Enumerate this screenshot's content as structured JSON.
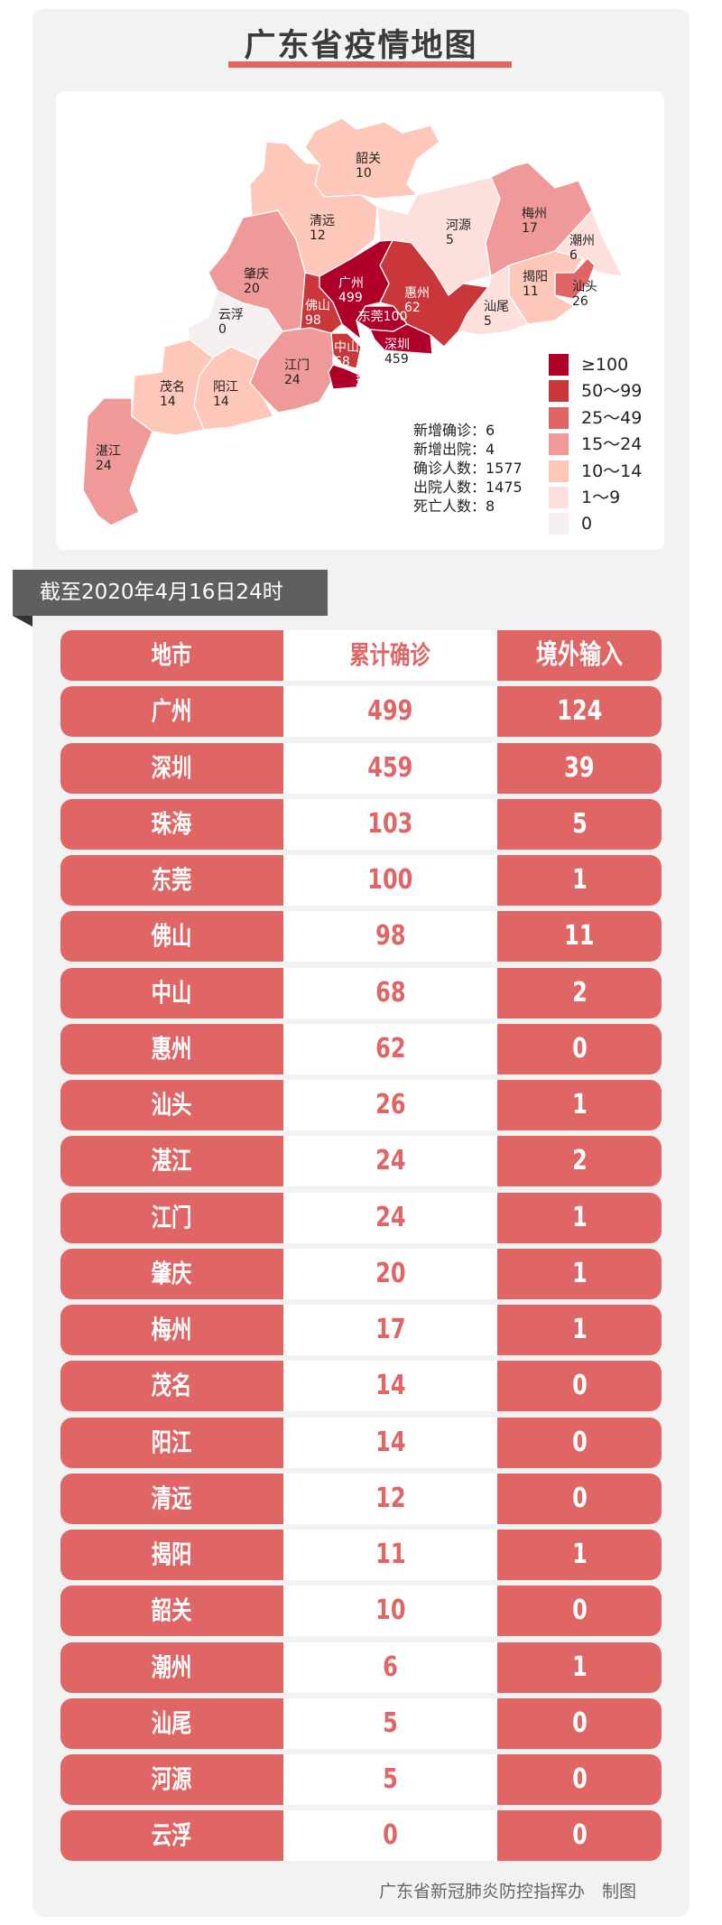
{
  "title": "广东省疫情地图",
  "map": {
    "regions": [
      {
        "id": "shaoguan",
        "name": "韶关",
        "count": "10"
      },
      {
        "id": "qingyuan",
        "name": "清远",
        "count": "12"
      },
      {
        "id": "heyuan",
        "name": "河源",
        "count": "5"
      },
      {
        "id": "meizhou",
        "name": "梅州",
        "count": "17"
      },
      {
        "id": "chaozhou",
        "name": "潮州",
        "count": "6"
      },
      {
        "id": "jieyang",
        "name": "揭阳",
        "count": "11"
      },
      {
        "id": "shantou",
        "name": "汕头",
        "count": "26"
      },
      {
        "id": "shanwei",
        "name": "汕尾",
        "count": "5"
      },
      {
        "id": "huizhou",
        "name": "惠州",
        "count": "62"
      },
      {
        "id": "guangzhou",
        "name": "广州",
        "count": "499"
      },
      {
        "id": "dongguan",
        "name": "东莞",
        "count": "100"
      },
      {
        "id": "shenzhen",
        "name": "深圳",
        "count": "459"
      },
      {
        "id": "foshan",
        "name": "佛山",
        "count": "98"
      },
      {
        "id": "zhaoqing",
        "name": "肇庆",
        "count": "20"
      },
      {
        "id": "yunfu",
        "name": "云浮",
        "count": "0"
      },
      {
        "id": "zhongshan",
        "name": "中山",
        "count": "68"
      },
      {
        "id": "jiangmen",
        "name": "江门",
        "count": "24"
      },
      {
        "id": "zhuhai",
        "name": "珠海",
        "count": "103"
      },
      {
        "id": "maoming",
        "name": "茂名",
        "count": "14"
      },
      {
        "id": "yangjiang",
        "name": "阳江",
        "count": "14"
      },
      {
        "id": "zhanjiang",
        "name": "湛江",
        "count": "24"
      }
    ],
    "stats": [
      "新增确诊：6",
      "新增出院：4",
      "确诊人数：1577",
      "出院人数：1475",
      "死亡人数：8"
    ],
    "legend": [
      {
        "label": "≥100",
        "color": "#b0002a"
      },
      {
        "label": "50～99",
        "color": "#c9373a"
      },
      {
        "label": "25～49",
        "color": "#e06666"
      },
      {
        "label": "15～24",
        "color": "#ef9a98"
      },
      {
        "label": "10～14",
        "color": "#fdc7b9"
      },
      {
        "label": "1～9",
        "color": "#fde0dc"
      },
      {
        "label": "0",
        "color": "#f5efef"
      }
    ]
  },
  "date": "截至2020年4月16日24时",
  "table": {
    "headers": [
      "地市",
      "累计确诊",
      "境外输入"
    ],
    "rows": [
      [
        "广州",
        "499",
        "124"
      ],
      [
        "深圳",
        "459",
        "39"
      ],
      [
        "珠海",
        "103",
        "5"
      ],
      [
        "东莞",
        "100",
        "1"
      ],
      [
        "佛山",
        "98",
        "11"
      ],
      [
        "中山",
        "68",
        "2"
      ],
      [
        "惠州",
        "62",
        "0"
      ],
      [
        "汕头",
        "26",
        "1"
      ],
      [
        "湛江",
        "24",
        "2"
      ],
      [
        "江门",
        "24",
        "1"
      ],
      [
        "肇庆",
        "20",
        "1"
      ],
      [
        "梅州",
        "17",
        "1"
      ],
      [
        "茂名",
        "14",
        "0"
      ],
      [
        "阳江",
        "14",
        "0"
      ],
      [
        "清远",
        "12",
        "0"
      ],
      [
        "揭阳",
        "11",
        "1"
      ],
      [
        "韶关",
        "10",
        "0"
      ],
      [
        "潮州",
        "6",
        "1"
      ],
      [
        "汕尾",
        "5",
        "0"
      ],
      [
        "河源",
        "5",
        "0"
      ],
      [
        "云浮",
        "0",
        "0"
      ]
    ]
  },
  "footer": "广东省新冠肺炎防控指挥办　制图",
  "colors": {
    "accent": "#e06666",
    "banner": "#5f5f5f",
    "title": "#3a3a3a"
  }
}
